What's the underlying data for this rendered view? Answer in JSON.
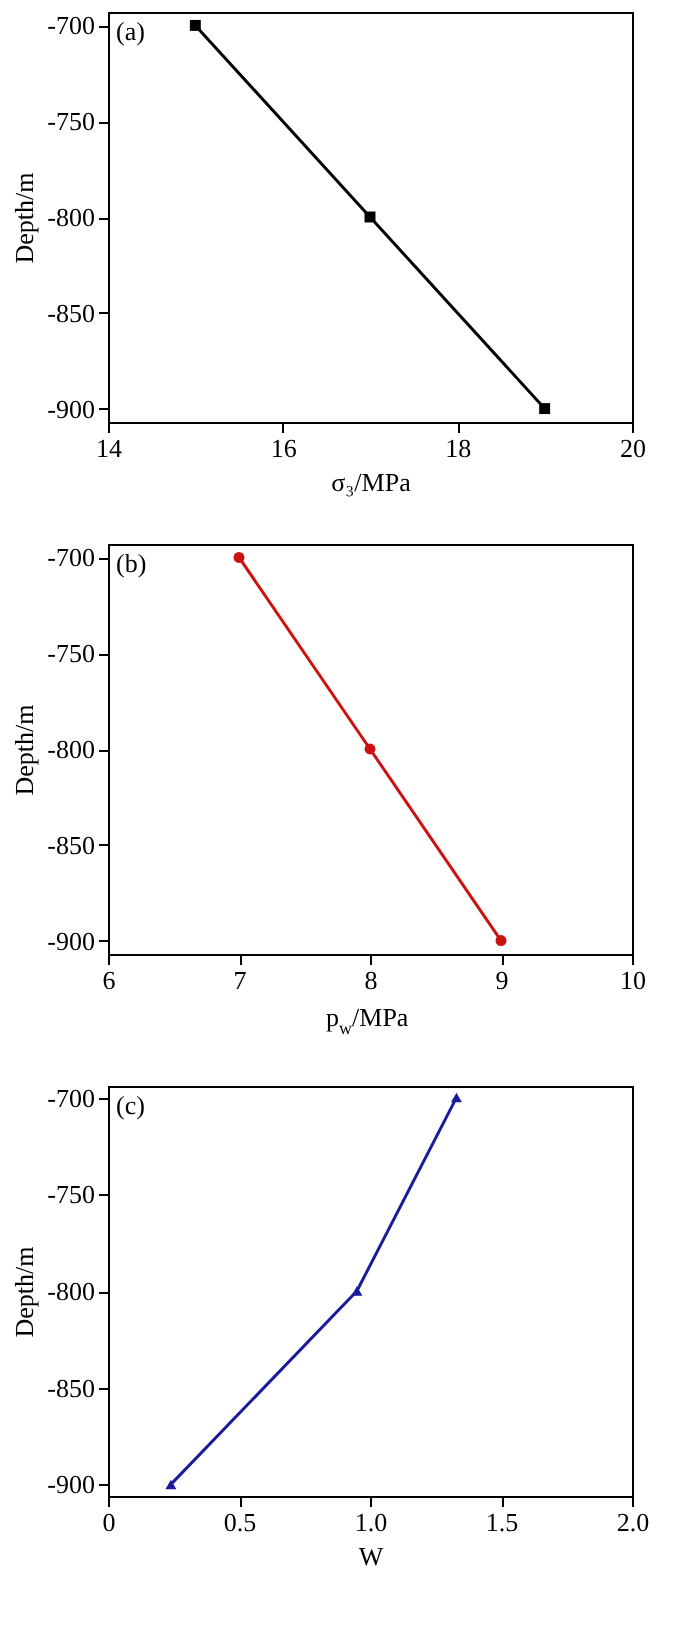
{
  "chart_data": [
    {
      "type": "line",
      "xlabel": "σ₃/MPa",
      "ylabel": "Depth/m",
      "annotations": [
        "(a)"
      ],
      "marker": "square",
      "grid": false,
      "series": [
        {
          "color": "#000000",
          "x": [
            15,
            17,
            19
          ],
          "values": [
            -700,
            -800,
            -900
          ]
        }
      ],
      "xlim": [
        14,
        20
      ],
      "xticks": [
        14,
        16,
        18,
        20
      ],
      "ylim": [
        -907,
        -693
      ],
      "yticks": [
        -900,
        -850,
        -800,
        -750,
        -700
      ]
    },
    {
      "type": "line",
      "xlabel": "p$_{w}$/MPa",
      "ylabel": "Depth/m",
      "annotations": [
        "(b)"
      ],
      "marker": "circle",
      "grid": false,
      "series": [
        {
          "color": "#cc1111",
          "x": [
            7,
            8,
            9
          ],
          "values": [
            -700,
            -800,
            -900
          ]
        }
      ],
      "xlim": [
        6,
        10
      ],
      "xticks": [
        6,
        7,
        8,
        9,
        10
      ],
      "ylim": [
        -907,
        -693
      ],
      "yticks": [
        -900,
        -850,
        -800,
        -750,
        -700
      ]
    },
    {
      "type": "line",
      "xlabel": "W",
      "ylabel": "Depth/m",
      "annotations": [
        "(c)"
      ],
      "marker": "triangle",
      "grid": false,
      "series": [
        {
          "color": "#1a1a9c",
          "x": [
            1.33,
            0.95,
            0.24
          ],
          "values": [
            -700,
            -800,
            -900
          ]
        }
      ],
      "xlim": [
        0,
        2.0
      ],
      "xticks": [
        0,
        {
          "value": 0.5,
          "label": "0.5"
        },
        {
          "value": 1.0,
          "label": "1.0"
        },
        {
          "value": 1.5,
          "label": "1.5"
        },
        {
          "value": 2.0,
          "label": "2.0"
        }
      ],
      "ylim": [
        -906,
        -694
      ],
      "yticks": [
        -900,
        -850,
        -800,
        -750,
        -700
      ]
    }
  ]
}
